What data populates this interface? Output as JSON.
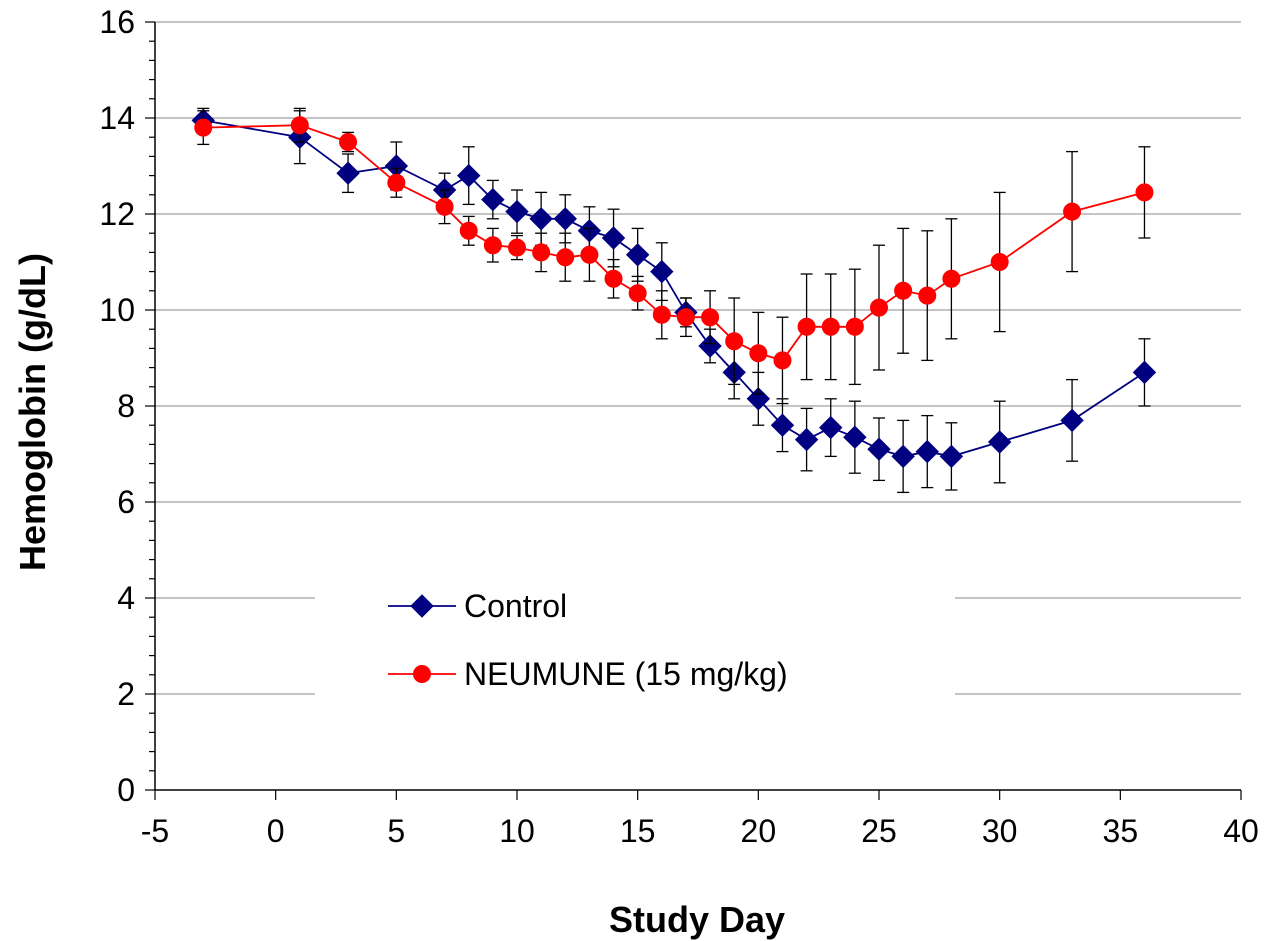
{
  "chart_data": {
    "type": "line",
    "xlabel": "Study Day",
    "ylabel": "Hemoglobin (g/dL)",
    "xlim": [
      -5,
      40
    ],
    "ylim": [
      0,
      16
    ],
    "xticks": [
      -5,
      0,
      5,
      10,
      15,
      20,
      25,
      30,
      35,
      40
    ],
    "yticks": [
      0,
      2,
      4,
      6,
      8,
      10,
      12,
      14,
      16
    ],
    "grid": "horizontal",
    "legend_position": "lower-center",
    "series": [
      {
        "name": "Control",
        "color": "#000080",
        "marker": "diamond",
        "x": [
          -3,
          1,
          3,
          5,
          7,
          8,
          9,
          10,
          11,
          12,
          13,
          14,
          15,
          16,
          17,
          18,
          19,
          20,
          21,
          22,
          23,
          24,
          25,
          26,
          27,
          28,
          30,
          33,
          36
        ],
        "y": [
          13.95,
          13.6,
          12.85,
          13.0,
          12.5,
          12.8,
          12.3,
          12.05,
          11.9,
          11.9,
          11.65,
          11.5,
          11.15,
          10.8,
          9.95,
          9.25,
          8.7,
          8.15,
          7.6,
          7.3,
          7.55,
          7.35,
          7.1,
          6.95,
          7.05,
          6.95,
          7.25,
          7.7,
          8.7
        ],
        "err": [
          0.25,
          0.55,
          0.4,
          0.5,
          0.35,
          0.6,
          0.4,
          0.45,
          0.55,
          0.5,
          0.5,
          0.6,
          0.55,
          0.6,
          0.3,
          0.35,
          0.55,
          0.55,
          0.55,
          0.65,
          0.6,
          0.75,
          0.65,
          0.75,
          0.75,
          0.7,
          0.85,
          0.85,
          0.7
        ]
      },
      {
        "name": "NEUMUNE (15 mg/kg)",
        "color": "#ff0000",
        "marker": "circle",
        "x": [
          -3,
          1,
          3,
          5,
          7,
          8,
          9,
          10,
          11,
          12,
          13,
          14,
          15,
          16,
          17,
          18,
          19,
          20,
          21,
          22,
          23,
          24,
          25,
          26,
          27,
          28,
          30,
          33,
          36
        ],
        "y": [
          13.8,
          13.85,
          13.5,
          12.65,
          12.15,
          11.65,
          11.35,
          11.3,
          11.2,
          11.1,
          11.15,
          10.65,
          10.35,
          9.9,
          9.85,
          9.85,
          9.35,
          9.1,
          8.95,
          9.65,
          9.65,
          9.65,
          10.05,
          10.4,
          10.3,
          10.65,
          11.0,
          12.05,
          12.45
        ],
        "err": [
          0.35,
          0.35,
          0.2,
          0.3,
          0.35,
          0.3,
          0.35,
          0.25,
          0.4,
          0.5,
          0.55,
          0.4,
          0.35,
          0.5,
          0.4,
          0.55,
          0.9,
          0.85,
          0.9,
          1.1,
          1.1,
          1.2,
          1.3,
          1.3,
          1.35,
          1.25,
          1.45,
          1.25,
          0.95
        ]
      }
    ]
  }
}
